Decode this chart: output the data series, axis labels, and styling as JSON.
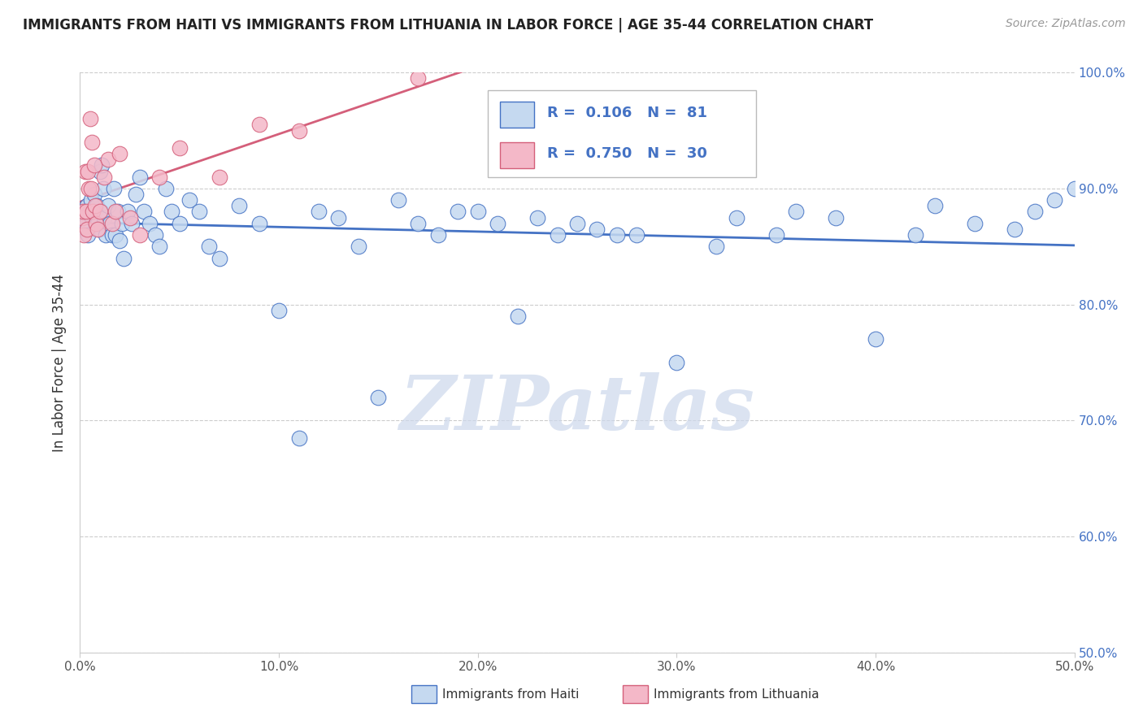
{
  "title": "IMMIGRANTS FROM HAITI VS IMMIGRANTS FROM LITHUANIA IN LABOR FORCE | AGE 35-44 CORRELATION CHART",
  "source": "Source: ZipAtlas.com",
  "ylabel": "In Labor Force | Age 35-44",
  "x_range": [
    0.0,
    50.0
  ],
  "y_range": [
    50.0,
    100.0
  ],
  "xticks": [
    0,
    10,
    20,
    30,
    40,
    50
  ],
  "yticks": [
    50,
    60,
    70,
    80,
    90,
    100
  ],
  "xtick_labels": [
    "0.0%",
    "10.0%",
    "20.0%",
    "30.0%",
    "40.0%",
    "50.0%"
  ],
  "ytick_labels": [
    "50.0%",
    "60.0%",
    "70.0%",
    "80.0%",
    "90.0%",
    "100.0%"
  ],
  "legend_haiti": "Immigrants from Haiti",
  "legend_lithuania": "Immigrants from Lithuania",
  "R_haiti": "0.106",
  "N_haiti": "81",
  "R_lithuania": "0.750",
  "N_lithuania": "30",
  "haiti_fill": "#c5d9f0",
  "haiti_edge": "#4472c4",
  "lith_fill": "#f4b8c8",
  "lith_edge": "#d45f7a",
  "haiti_line_color": "#4472c4",
  "lith_line_color": "#d45f7a",
  "watermark": "ZIPatlas",
  "watermark_color": "#cdd8ec",
  "background_color": "#ffffff",
  "grid_color": "#cccccc",
  "haiti_scatter_x": [
    0.15,
    0.2,
    0.25,
    0.3,
    0.35,
    0.4,
    0.5,
    0.55,
    0.6,
    0.65,
    0.7,
    0.75,
    0.8,
    0.85,
    0.9,
    0.95,
    1.0,
    1.05,
    1.1,
    1.15,
    1.2,
    1.3,
    1.4,
    1.5,
    1.6,
    1.7,
    1.8,
    1.9,
    2.0,
    2.1,
    2.2,
    2.4,
    2.6,
    2.8,
    3.0,
    3.2,
    3.5,
    3.8,
    4.0,
    4.3,
    4.6,
    5.0,
    5.5,
    6.0,
    6.5,
    7.0,
    8.0,
    9.0,
    10.0,
    11.0,
    12.0,
    13.0,
    14.0,
    15.0,
    16.0,
    17.0,
    18.0,
    19.0,
    20.0,
    21.0,
    22.0,
    23.0,
    24.0,
    25.0,
    26.0,
    27.0,
    28.0,
    30.0,
    32.0,
    33.0,
    35.0,
    36.0,
    38.0,
    40.0,
    42.0,
    43.0,
    45.0,
    47.0,
    48.0,
    49.0,
    50.0
  ],
  "haiti_scatter_y": [
    87.5,
    88.0,
    86.5,
    87.0,
    88.5,
    86.0,
    88.0,
    89.0,
    87.5,
    88.0,
    89.5,
    88.0,
    87.0,
    88.5,
    87.0,
    86.5,
    91.5,
    88.0,
    92.0,
    90.0,
    87.5,
    86.0,
    88.5,
    87.0,
    86.0,
    90.0,
    86.0,
    88.0,
    85.5,
    87.0,
    84.0,
    88.0,
    87.0,
    89.5,
    91.0,
    88.0,
    87.0,
    86.0,
    85.0,
    90.0,
    88.0,
    87.0,
    89.0,
    88.0,
    85.0,
    84.0,
    88.5,
    87.0,
    79.5,
    68.5,
    88.0,
    87.5,
    85.0,
    72.0,
    89.0,
    87.0,
    86.0,
    88.0,
    88.0,
    87.0,
    79.0,
    87.5,
    86.0,
    87.0,
    86.5,
    86.0,
    86.0,
    75.0,
    85.0,
    87.5,
    86.0,
    88.0,
    87.5,
    77.0,
    86.0,
    88.5,
    87.0,
    86.5,
    88.0,
    89.0,
    90.0
  ],
  "lith_scatter_x": [
    0.1,
    0.15,
    0.2,
    0.25,
    0.3,
    0.35,
    0.4,
    0.45,
    0.5,
    0.55,
    0.6,
    0.65,
    0.7,
    0.75,
    0.8,
    0.9,
    1.0,
    1.2,
    1.4,
    1.6,
    1.8,
    2.0,
    2.5,
    3.0,
    4.0,
    5.0,
    7.0,
    9.0,
    11.0,
    17.0
  ],
  "lith_scatter_y": [
    87.5,
    88.0,
    86.0,
    91.5,
    88.0,
    86.5,
    91.5,
    90.0,
    96.0,
    90.0,
    94.0,
    88.0,
    92.0,
    88.5,
    87.0,
    86.5,
    88.0,
    91.0,
    92.5,
    87.0,
    88.0,
    93.0,
    87.5,
    86.0,
    91.0,
    93.5,
    91.0,
    95.5,
    95.0,
    99.5
  ]
}
